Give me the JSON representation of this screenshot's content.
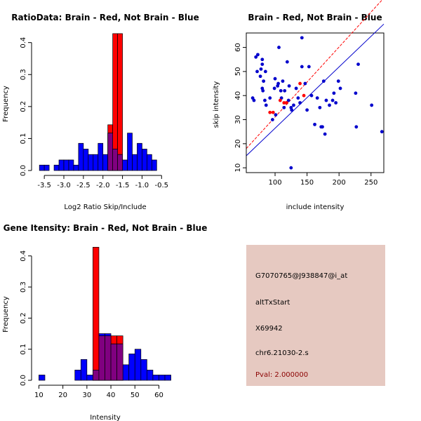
{
  "chart_data": [
    {
      "id": "ratio",
      "type": "histogram",
      "title": "RatioData: Brain - Red, Not Brain - Blue",
      "xlabel": "Log2 Ratio Skip/Include",
      "ylabel": "Frequency",
      "xlim": [
        -3.7,
        -0.2
      ],
      "ylim": [
        0,
        0.43
      ],
      "xticks": [
        -3.5,
        -3.0,
        -2.5,
        -2.0,
        -1.5,
        -1.0,
        -0.5
      ],
      "xtick_labels": [
        "-3.5",
        "-3.0",
        "-2.5",
        "-2.0",
        "-1.5",
        "-1.0",
        "-0.5"
      ],
      "yticks": [
        0.0,
        0.1,
        0.2,
        0.3,
        0.4
      ],
      "ytick_labels": [
        "0.0",
        "0.1",
        "0.2",
        "0.3",
        "0.4"
      ],
      "bin_width": 0.125,
      "series": [
        {
          "name": "Not Brain",
          "color": "#0000ff",
          "bins": [
            {
              "x0": -3.625,
              "v": 0.017
            },
            {
              "x0": -3.5,
              "v": 0.017
            },
            {
              "x0": -3.375,
              "v": 0.0
            },
            {
              "x0": -3.25,
              "v": 0.017
            },
            {
              "x0": -3.125,
              "v": 0.033
            },
            {
              "x0": -3.0,
              "v": 0.033
            },
            {
              "x0": -2.875,
              "v": 0.033
            },
            {
              "x0": -2.75,
              "v": 0.017
            },
            {
              "x0": -2.625,
              "v": 0.085
            },
            {
              "x0": -2.5,
              "v": 0.067
            },
            {
              "x0": -2.375,
              "v": 0.05
            },
            {
              "x0": -2.25,
              "v": 0.05
            },
            {
              "x0": -2.125,
              "v": 0.085
            },
            {
              "x0": -2.0,
              "v": 0.05
            },
            {
              "x0": -1.875,
              "v": 0.117
            },
            {
              "x0": -1.75,
              "v": 0.067
            },
            {
              "x0": -1.625,
              "v": 0.05
            },
            {
              "x0": -1.5,
              "v": 0.033
            },
            {
              "x0": -1.375,
              "v": 0.117
            },
            {
              "x0": -1.25,
              "v": 0.05
            },
            {
              "x0": -1.125,
              "v": 0.085
            },
            {
              "x0": -1.0,
              "v": 0.067
            },
            {
              "x0": -0.875,
              "v": 0.05
            },
            {
              "x0": -0.75,
              "v": 0.033
            }
          ]
        },
        {
          "name": "Brain",
          "color": "#ff0000",
          "bins": [
            {
              "x0": -1.875,
              "v": 0.143
            },
            {
              "x0": -1.75,
              "v": 0.428
            },
            {
              "x0": -1.625,
              "v": 0.428
            }
          ]
        }
      ]
    },
    {
      "id": "scatter",
      "type": "scatter",
      "title": "Brain - Red, Not Brain - Blue",
      "xlabel": "include intensity",
      "ylabel": "skip intensity",
      "xlim": [
        55,
        270
      ],
      "ylim": [
        8,
        66
      ],
      "xticks": [
        100,
        150,
        200,
        250
      ],
      "xtick_labels": [
        "100",
        "150",
        "200",
        "250"
      ],
      "yticks": [
        10,
        20,
        30,
        40,
        50,
        60
      ],
      "ytick_labels": [
        "10",
        "20",
        "30",
        "40",
        "50",
        "60"
      ],
      "series": [
        {
          "name": "Not Brain",
          "color": "#0000cc",
          "points": [
            [
              65,
              39
            ],
            [
              67,
              38
            ],
            [
              70,
              56
            ],
            [
              72,
              50
            ],
            [
              73,
              57
            ],
            [
              77,
              48
            ],
            [
              78,
              51
            ],
            [
              80,
              53
            ],
            [
              80,
              55
            ],
            [
              80,
              43
            ],
            [
              81,
              42
            ],
            [
              82,
              46
            ],
            [
              84,
              38
            ],
            [
              85,
              50
            ],
            [
              86,
              36
            ],
            [
              92,
              39
            ],
            [
              96,
              30
            ],
            [
              99,
              43
            ],
            [
              100,
              47
            ],
            [
              101,
              32
            ],
            [
              104,
              44
            ],
            [
              105,
              45
            ],
            [
              106,
              60
            ],
            [
              109,
              42
            ],
            [
              110,
              39
            ],
            [
              112,
              46
            ],
            [
              114,
              35
            ],
            [
              115,
              42
            ],
            [
              118,
              37
            ],
            [
              119,
              54
            ],
            [
              121,
              38
            ],
            [
              122,
              44
            ],
            [
              125,
              35
            ],
            [
              126,
              34
            ],
            [
              129,
              36
            ],
            [
              125,
              10
            ],
            [
              133,
              43
            ],
            [
              136,
              39
            ],
            [
              139,
              37
            ],
            [
              142,
              64
            ],
            [
              142,
              52
            ],
            [
              147,
              45
            ],
            [
              150,
              34
            ],
            [
              153,
              52
            ],
            [
              157,
              40
            ],
            [
              162,
              28
            ],
            [
              166,
              39
            ],
            [
              170,
              35
            ],
            [
              172,
              27
            ],
            [
              174,
              27
            ],
            [
              176,
              46
            ],
            [
              178,
              24
            ],
            [
              180,
              38
            ],
            [
              185,
              36
            ],
            [
              190,
              38
            ],
            [
              192,
              41
            ],
            [
              195,
              37
            ],
            [
              199,
              46
            ],
            [
              202,
              43
            ],
            [
              226,
              41
            ],
            [
              227,
              27
            ],
            [
              230,
              53
            ],
            [
              251,
              36
            ],
            [
              267,
              25
            ]
          ]
        },
        {
          "name": "Brain",
          "color": "#ff0000",
          "points": [
            [
              92,
              33
            ],
            [
              97,
              33
            ],
            [
              108,
              38
            ],
            [
              114,
              37
            ],
            [
              118,
              37
            ],
            [
              139,
              45
            ],
            [
              145,
              40
            ]
          ]
        }
      ],
      "lines": [
        {
          "name": "Not Brain fit",
          "color": "#0000cc",
          "style": "solid",
          "from": [
            55,
            15.0
          ],
          "to": [
            270,
            69.7
          ]
        },
        {
          "name": "Brain fit",
          "color": "#ff0000",
          "style": "dashed",
          "from": [
            55,
            18.0
          ],
          "to": [
            270,
            80.5
          ]
        }
      ]
    },
    {
      "id": "intensity",
      "type": "histogram",
      "title": "Gene Itensity: Brain - Red, Not Brain - Blue",
      "xlabel": "Intensity",
      "ylabel": "Frequency",
      "xlim": [
        9,
        66
      ],
      "ylim": [
        0,
        0.44
      ],
      "xticks": [
        10,
        20,
        30,
        40,
        50,
        60
      ],
      "xtick_labels": [
        "10",
        "20",
        "30",
        "40",
        "50",
        "60"
      ],
      "yticks": [
        0.0,
        0.1,
        0.2,
        0.3,
        0.4
      ],
      "ytick_labels": [
        "0.0",
        "0.1",
        "0.2",
        "0.3",
        "0.4"
      ],
      "bin_width": 2.5,
      "series": [
        {
          "name": "Not Brain",
          "color": "#0000ff",
          "bins": [
            {
              "x0": 10.0,
              "v": 0.017
            },
            {
              "x0": 12.5,
              "v": 0.0
            },
            {
              "x0": 15.0,
              "v": 0.0
            },
            {
              "x0": 17.5,
              "v": 0.0
            },
            {
              "x0": 20.0,
              "v": 0.0
            },
            {
              "x0": 22.5,
              "v": 0.0
            },
            {
              "x0": 25.0,
              "v": 0.033
            },
            {
              "x0": 27.5,
              "v": 0.067
            },
            {
              "x0": 30.0,
              "v": 0.017
            },
            {
              "x0": 32.5,
              "v": 0.033
            },
            {
              "x0": 35.0,
              "v": 0.15
            },
            {
              "x0": 37.5,
              "v": 0.15
            },
            {
              "x0": 40.0,
              "v": 0.117
            },
            {
              "x0": 42.5,
              "v": 0.117
            },
            {
              "x0": 45.0,
              "v": 0.05
            },
            {
              "x0": 47.5,
              "v": 0.085
            },
            {
              "x0": 50.0,
              "v": 0.1
            },
            {
              "x0": 52.5,
              "v": 0.067
            },
            {
              "x0": 55.0,
              "v": 0.033
            },
            {
              "x0": 57.5,
              "v": 0.017
            },
            {
              "x0": 60.0,
              "v": 0.017
            },
            {
              "x0": 62.5,
              "v": 0.017
            }
          ]
        },
        {
          "name": "Brain",
          "color": "#ff0000",
          "bins": [
            {
              "x0": 32.5,
              "v": 0.428
            },
            {
              "x0": 35.0,
              "v": 0.143
            },
            {
              "x0": 37.5,
              "v": 0.143
            },
            {
              "x0": 40.0,
              "v": 0.143
            },
            {
              "x0": 42.5,
              "v": 0.143
            }
          ]
        }
      ]
    }
  ],
  "info_panel": {
    "background": "#e6c9c1",
    "probe_id": "G7070765@J938847@i_at",
    "event_type": "altTxStart",
    "accession": "X69942",
    "location": "chr6.21030-2.s",
    "pval": "Pval: 2.000000",
    "pval_color": "#8b0000"
  }
}
